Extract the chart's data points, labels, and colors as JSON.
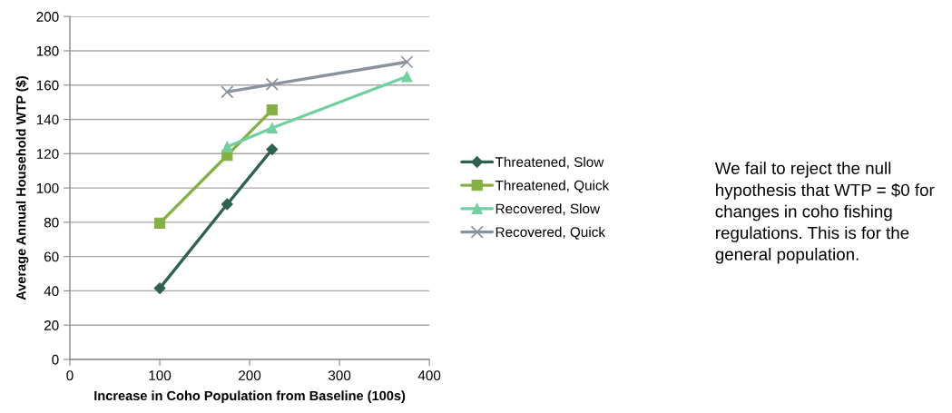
{
  "chart_data": {
    "type": "line",
    "xlabel": "Increase in Coho Population from Baseline (100s)",
    "ylabel": "Average Annual Household WTP ($)",
    "series": [
      {
        "name": "Threatened, Slow",
        "color": "#2e6150",
        "marker": "diamond",
        "x": [
          100,
          175,
          225
        ],
        "values": [
          41.5,
          90.5,
          122.5
        ]
      },
      {
        "name": "Threatened, Quick",
        "color": "#86b044",
        "marker": "square",
        "x": [
          100,
          175,
          225
        ],
        "values": [
          79.5,
          119,
          145.5
        ]
      },
      {
        "name": "Recovered, Slow",
        "color": "#72d0a0",
        "marker": "triangle",
        "x": [
          175,
          225,
          375
        ],
        "values": [
          124,
          135,
          165
        ]
      },
      {
        "name": "Recovered, Quick",
        "color": "#8a929d",
        "marker": "cross",
        "x": [
          175,
          225,
          375
        ],
        "values": [
          156,
          160.5,
          173.5
        ]
      }
    ],
    "xlim": [
      0,
      400
    ],
    "xticks": [
      0,
      100,
      200,
      300,
      400
    ],
    "ylim": [
      0,
      200
    ],
    "yticks": [
      0,
      20,
      40,
      60,
      80,
      100,
      120,
      140,
      160,
      180,
      200
    ],
    "grid": "y",
    "legend": "right",
    "line_style": "solid",
    "annotations": [
      "We fail to reject the null hypothesis that WTP = $0 for changes in coho fishing regulations. This is for the general population."
    ]
  }
}
